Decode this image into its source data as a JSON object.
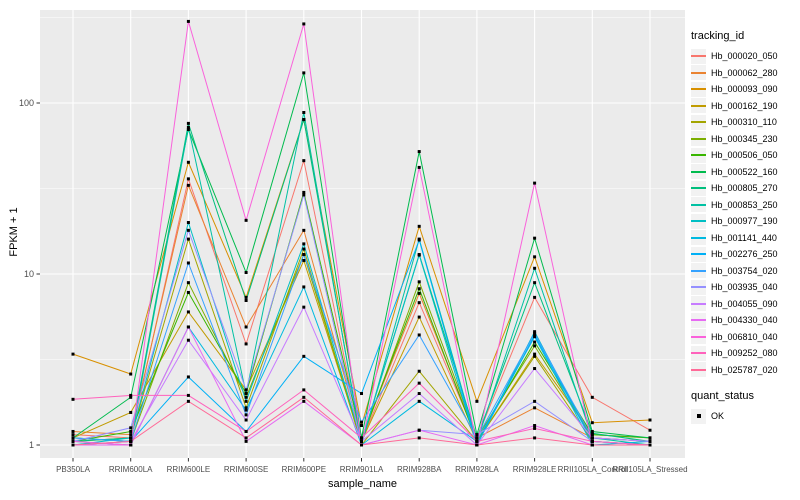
{
  "chart_data": {
    "type": "line",
    "title": "",
    "xlabel": "sample_name",
    "ylabel": "FPKM + 1",
    "y_scale": "log10",
    "y_ticks": [
      1,
      10,
      100
    ],
    "y_minor_ticks": [
      3.1623,
      31.623,
      316.23
    ],
    "ylim_px_note": "log decade = 171px, value 1 at y=445",
    "legend_title": "tracking_id",
    "quant_legend_title": "quant_status",
    "quant_status_label": "OK",
    "categories": [
      "PB350LA",
      "RRIM600LA",
      "RRIM600LE",
      "RRIM600SE",
      "RRIM600PE",
      "RRIM901LA",
      "RRIM928BA",
      "RRIM928LA",
      "RRIM928LE",
      "RRII105LA_Control",
      "RRII105LA_Stressed"
    ],
    "series": [
      {
        "name": "Hb_000020_050",
        "color": "#F8766D",
        "values": [
          1.15,
          1.1,
          36,
          3.9,
          46,
          1.05,
          6.8,
          1.1,
          7.3,
          1.9,
          1.22
        ]
      },
      {
        "name": "Hb_000062_280",
        "color": "#EA8331",
        "values": [
          1.2,
          1.15,
          33,
          4.9,
          18,
          1.1,
          7.7,
          1.1,
          1.65,
          1.1,
          1.05
        ]
      },
      {
        "name": "Hb_000093_090",
        "color": "#D89000",
        "values": [
          3.4,
          2.6,
          45,
          7.3,
          80,
          1.3,
          19,
          1.8,
          12.6,
          1.35,
          1.4
        ]
      },
      {
        "name": "Hb_000162_190",
        "color": "#C09B00",
        "values": [
          1.1,
          1.55,
          6,
          2.1,
          12,
          1.05,
          5.6,
          1.05,
          3.4,
          1.15,
          1.1
        ]
      },
      {
        "name": "Hb_000310_110",
        "color": "#A3A500",
        "values": [
          1.05,
          1.1,
          16,
          1.65,
          14,
          1.0,
          2.7,
          1.05,
          3.3,
          1.05,
          1.0
        ]
      },
      {
        "name": "Hb_000345_230",
        "color": "#7CAE00",
        "values": [
          1.1,
          1.05,
          8.9,
          1.9,
          13,
          1.05,
          9.0,
          1.1,
          3.8,
          1.1,
          1.05
        ]
      },
      {
        "name": "Hb_000506_050",
        "color": "#39B600",
        "values": [
          1.05,
          1.2,
          7.8,
          2.0,
          30,
          1.1,
          8.2,
          1.05,
          4.0,
          1.15,
          1.1
        ]
      },
      {
        "name": "Hb_000522_160",
        "color": "#00BB4E",
        "values": [
          1.1,
          1.9,
          70,
          10.2,
          150,
          1.1,
          52,
          1.15,
          16.2,
          1.2,
          1.1
        ]
      },
      {
        "name": "Hb_000805_270",
        "color": "#00BF7D",
        "values": [
          1.05,
          1.1,
          76,
          7.0,
          80,
          1.05,
          13,
          1.1,
          8.9,
          1.17,
          1.05
        ]
      },
      {
        "name": "Hb_000853_250",
        "color": "#00C1A3",
        "values": [
          1.1,
          1.05,
          72,
          2.0,
          88,
          1.0,
          16,
          1.05,
          10.8,
          1.1,
          1.0
        ]
      },
      {
        "name": "Hb_000977_190",
        "color": "#00BFC4",
        "values": [
          1.0,
          1.1,
          20,
          1.8,
          15,
          1.05,
          12.9,
          1.0,
          4.6,
          1.05,
          1.0
        ]
      },
      {
        "name": "Hb_001141_440",
        "color": "#00BAE0",
        "values": [
          1.05,
          1.0,
          4.9,
          1.6,
          8.4,
          1.0,
          1.8,
          1.05,
          4.3,
          1.0,
          1.05
        ]
      },
      {
        "name": "Hb_002276_250",
        "color": "#00B0F6",
        "values": [
          1.0,
          1.05,
          2.5,
          1.2,
          3.3,
          2.0,
          15.8,
          1.0,
          4.4,
          1.05,
          1.0
        ]
      },
      {
        "name": "Hb_003754_020",
        "color": "#35A2FF",
        "values": [
          1.1,
          1.05,
          11.6,
          1.5,
          13,
          1.36,
          4.4,
          1.1,
          4.5,
          1.1,
          1.05
        ]
      },
      {
        "name": "Hb_003935_040",
        "color": "#9590FF",
        "values": [
          1.05,
          1.26,
          18,
          2.1,
          29,
          1.0,
          1.22,
          1.15,
          1.8,
          1.05,
          1.0
        ]
      },
      {
        "name": "Hb_004055_090",
        "color": "#C77CFF",
        "values": [
          1.0,
          1.05,
          4.1,
          1.4,
          6.4,
          1.05,
          2.0,
          1.0,
          2.8,
          1.1,
          1.05
        ]
      },
      {
        "name": "Hb_004330_040",
        "color": "#E76BF3",
        "values": [
          1.0,
          1.0,
          4.9,
          1.05,
          1.8,
          1.0,
          1.22,
          1.0,
          1.3,
          1.0,
          1.0
        ]
      },
      {
        "name": "Hb_006810_040",
        "color": "#FA62DB",
        "values": [
          1.05,
          1.0,
          300,
          20.6,
          290,
          1.0,
          42,
          1.0,
          34,
          1.0,
          1.0
        ]
      },
      {
        "name": "Hb_009252_080",
        "color": "#FF62BC",
        "values": [
          1.85,
          1.95,
          1.95,
          1.2,
          2.1,
          1.1,
          2.3,
          1.05,
          1.25,
          1.05,
          1.0
        ]
      },
      {
        "name": "Hb_025787_020",
        "color": "#FF6A98",
        "values": [
          1.0,
          1.05,
          1.8,
          1.1,
          1.9,
          1.0,
          1.1,
          1.0,
          1.1,
          1.0,
          1.0
        ]
      }
    ]
  },
  "colors": {
    "panel_background": "#EBEBEB",
    "gridline": "#FFFFFF",
    "tick_text": "#4D4D4D",
    "axis_text": "#000000",
    "legend_key_background": "#F2F2F2",
    "point_marker": "#000000"
  }
}
